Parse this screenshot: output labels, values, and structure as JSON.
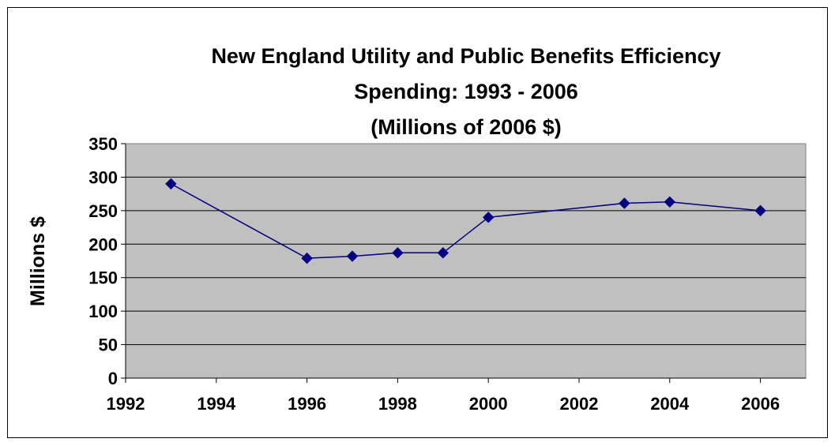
{
  "chart_data": {
    "type": "line",
    "title": [
      "New England Utility and Public Benefits Efficiency",
      "Spending:  1993 - 2006",
      "(Millions of 2006 $)"
    ],
    "xlabel": "",
    "ylabel": "Millions $",
    "xlim": [
      1992,
      2007
    ],
    "ylim": [
      0,
      350
    ],
    "x_ticks": [
      1992,
      1994,
      1996,
      1998,
      2000,
      2002,
      2004,
      2006
    ],
    "y_ticks": [
      0,
      50,
      100,
      150,
      200,
      250,
      300,
      350
    ],
    "grid": "horizontal",
    "legend": "none",
    "plot_background": "#c0c0c0",
    "series": [
      {
        "color": "#000080",
        "marker": "diamond",
        "x": [
          1993,
          1996,
          1997,
          1998,
          1999,
          2000,
          2003,
          2004,
          2006
        ],
        "y": [
          290,
          179,
          182,
          187,
          187,
          240,
          261,
          263,
          250
        ]
      }
    ]
  }
}
